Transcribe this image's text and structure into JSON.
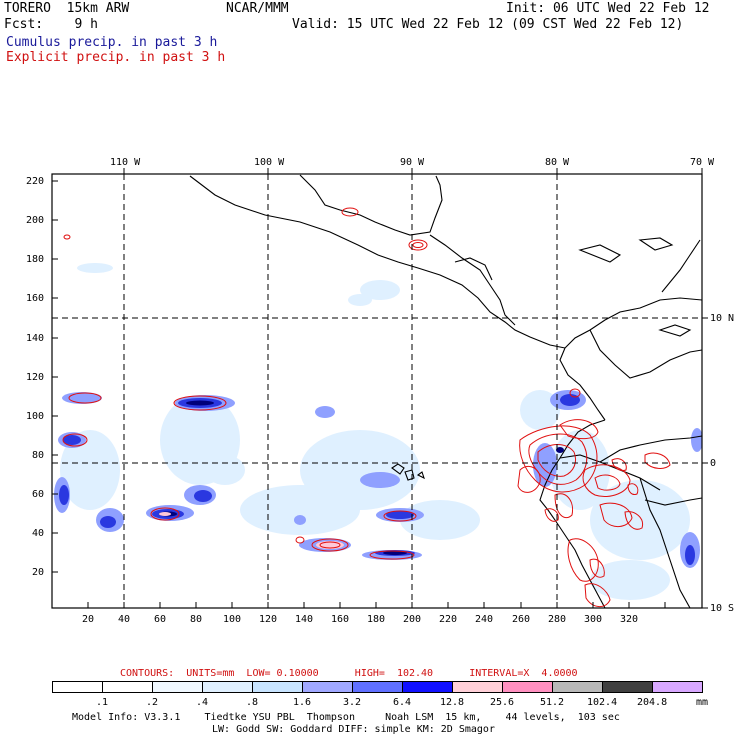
{
  "header": {
    "model": "TORERO  15km ARW",
    "org": "NCAR/MMM",
    "init": "Init: 06 UTC Wed 22 Feb 12",
    "fcst": "Fcst:    9 h",
    "valid": "Valid: 15 UTC Wed 22 Feb 12 (09 CST Wed 22 Feb 12)",
    "field1": "Cumulus precip. in past 3 h",
    "field2": "Explicit precip. in past 3 h"
  },
  "map": {
    "top_lon_labels": [
      "110 W",
      "100 W",
      "90 W",
      "80 W",
      "70 W"
    ],
    "right_lat_labels": [
      "10 N",
      "0",
      "10 S"
    ],
    "left_grid_labels": [
      "220",
      "200",
      "180",
      "160",
      "140",
      "120",
      "100",
      "80",
      "60",
      "40",
      "20"
    ],
    "bottom_grid_labels": [
      "20",
      "40",
      "60",
      "80",
      "100",
      "120",
      "140",
      "160",
      "180",
      "200",
      "220",
      "240",
      "260",
      "280",
      "300",
      "320"
    ],
    "colors": {
      "coast": "#000000",
      "gridline": "#000000",
      "explicit_contour": "#e01010",
      "cumulus_light": "#dff0ff",
      "cumulus_mid": "#8fa0ff",
      "cumulus_heavy": "#3040e0",
      "cumulus_core": "#0000a0"
    }
  },
  "contours_line": {
    "label": "CONTOURS:  UNITS=mm  LOW= 0.10000      HIGH=  102.40      INTERVAL=X  4.0000"
  },
  "colorbar": {
    "labels": [
      ".1",
      ".2",
      ".4",
      ".8",
      "1.6",
      "3.2",
      "6.4",
      "12.8",
      "25.6",
      "51.2",
      "102.4",
      "204.8"
    ],
    "unit": "mm",
    "colors": [
      "#ffffff",
      "#ffffff",
      "#f0f8ff",
      "#e0f0ff",
      "#c8e4ff",
      "#a0a8ff",
      "#6070ff",
      "#1010ff",
      "#ffd0d8",
      "#ff90c0",
      "#b8b8b8",
      "#404040",
      "#d8a8ff"
    ]
  },
  "footer": {
    "line1": "Model Info: V3.3.1    Tiedtke YSU PBL  Thompson     Noah LSM  15 km,    44 levels,  103 sec",
    "line2": "LW: Godd SW: Goddard DIFF: simple KM: 2D Smagor"
  }
}
